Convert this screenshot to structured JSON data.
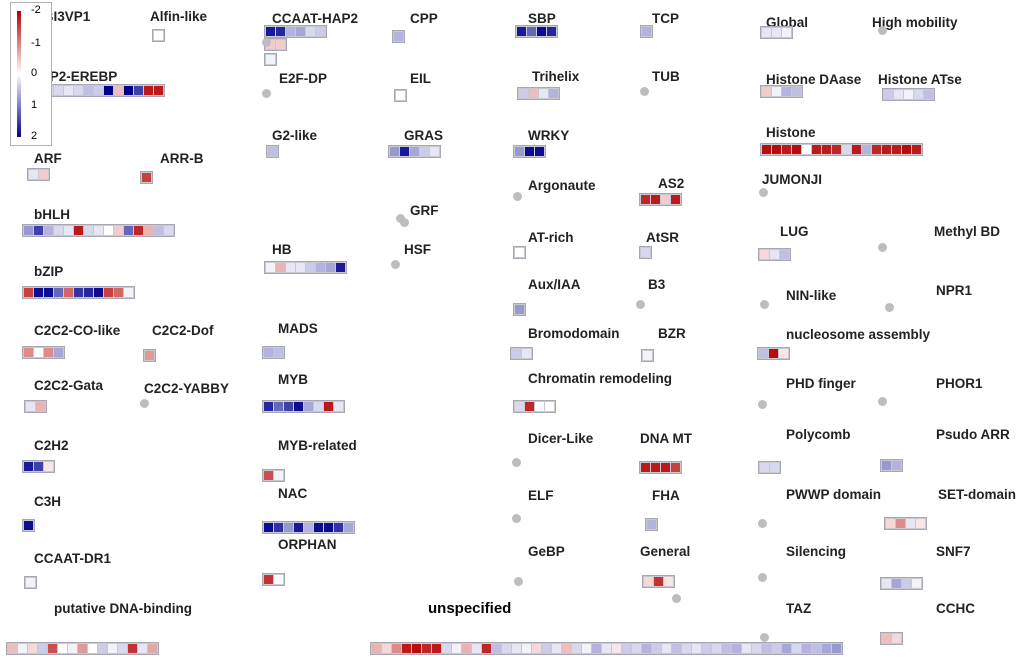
{
  "legend": {
    "ticks": [
      "-2",
      "-1",
      "0",
      "1",
      "2"
    ],
    "colors": {
      "low": "#b40000",
      "mid": "#ffffff",
      "high": "#00008c"
    },
    "scale": [
      -2,
      2
    ]
  },
  "families": [
    {
      "name": "ABI3VP1",
      "cells": [
        0.6
      ]
    },
    {
      "name": "Alfin-like",
      "cells": [
        0
      ]
    },
    {
      "name": "AP2-EREBP",
      "cells": [
        0.3,
        0.2,
        0.3,
        0.3,
        0.2,
        0.3,
        0.5,
        0.4,
        2,
        -0.5,
        2,
        1.5,
        -1.8,
        -1.8
      ]
    },
    {
      "name": "ARF",
      "cells": [
        0.2,
        -0.4
      ]
    },
    {
      "name": "ARR-B",
      "cells": [
        -1.5
      ]
    },
    {
      "name": "bHLH",
      "cells": [
        0.8,
        1.5,
        0.6,
        0.3,
        0.2,
        -1.8,
        0.3,
        0.2,
        0,
        -0.4,
        1.2,
        -1.7,
        -0.6,
        0.5,
        0.3
      ]
    },
    {
      "name": "bZIP",
      "cells": [
        -1.5,
        1.9,
        1.9,
        1.2,
        -1.2,
        1.6,
        1.7,
        1.9,
        -1.5,
        -1.2,
        0.1
      ]
    },
    {
      "name": "C2C2-CO-like",
      "cells": [
        -0.9,
        0,
        -0.9,
        0.7
      ]
    },
    {
      "name": "C2C2-Dof",
      "cells": [
        -0.8
      ]
    },
    {
      "name": "C2C2-Gata",
      "cells": [
        0.2,
        -0.6
      ]
    },
    {
      "name": "C2C2-YABBY",
      "cells": []
    },
    {
      "name": "C2H2",
      "cells": [
        1.8,
        1.5,
        -0.2
      ]
    },
    {
      "name": "C3H",
      "cells": [
        1.9
      ]
    },
    {
      "name": "CCAAT-DR1",
      "cells": [
        0.1
      ]
    },
    {
      "name": "putative DNA-binding",
      "cells": []
    },
    {
      "name": "CCAAT-HAP2",
      "cells": [
        1.8,
        1.7,
        0.6,
        0.7,
        0.3,
        0.4
      ]
    },
    {
      "name": "CCAAT-HAP3",
      "cells": [
        -0.4,
        -0.4
      ]
    },
    {
      "name": "CCAAT-HAP5",
      "cells": [
        0.1
      ]
    },
    {
      "name": "E2F-DP",
      "cells": []
    },
    {
      "name": "G2-like",
      "cells": [
        0.5
      ]
    },
    {
      "name": "HB",
      "cells": [
        0.1,
        -0.6,
        0.2,
        0.2,
        0.4,
        0.6,
        0.7,
        1.8
      ]
    },
    {
      "name": "MADS",
      "cells": [
        0.6,
        0.5
      ]
    },
    {
      "name": "MYB",
      "cells": [
        1.7,
        1.2,
        1.5,
        1.9,
        0.7,
        0.3,
        -1.8,
        0.2
      ]
    },
    {
      "name": "MYB-related",
      "cells": [
        -1.4,
        0.1
      ]
    },
    {
      "name": "NAC",
      "cells": [
        1.9,
        1.6,
        0.8,
        1.8,
        0.6,
        1.9,
        1.9,
        1.6,
        0.7
      ]
    },
    {
      "name": "ORPHAN",
      "cells": [
        -1.6,
        0
      ]
    },
    {
      "name": "CPP",
      "cells": [
        0.6
      ]
    },
    {
      "name": "EIL",
      "cells": [
        0
      ]
    },
    {
      "name": "GRAS",
      "cells": [
        0.8,
        1.8,
        0.7,
        0.4,
        0.2
      ]
    },
    {
      "name": "GRF",
      "cells": []
    },
    {
      "name": "HSF",
      "cells": []
    },
    {
      "name": "SBP",
      "cells": [
        1.8,
        1.2,
        1.9,
        1.7
      ]
    },
    {
      "name": "Trihelix",
      "cells": [
        0.4,
        -0.5,
        0.2,
        0.6
      ]
    },
    {
      "name": "WRKY",
      "cells": [
        0.8,
        1.9,
        1.9
      ]
    },
    {
      "name": "Argonaute",
      "cells": []
    },
    {
      "name": "AT-rich",
      "cells": [
        0
      ]
    },
    {
      "name": "Aux/IAA",
      "cells": [
        0.8
      ]
    },
    {
      "name": "Bromodomain",
      "cells": [
        0.4,
        0.2
      ]
    },
    {
      "name": "Chromatin remodeling",
      "cells": [
        0.3,
        -1.7,
        0,
        0
      ]
    },
    {
      "name": "Dicer-Like",
      "cells": []
    },
    {
      "name": "ELF",
      "cells": []
    },
    {
      "name": "GeBP",
      "cells": []
    },
    {
      "name": "TCP",
      "cells": [
        0.6
      ]
    },
    {
      "name": "TUB",
      "cells": []
    },
    {
      "name": "AS2",
      "cells": [
        -1.7,
        -1.8,
        -0.4,
        -1.8
      ]
    },
    {
      "name": "AtSR",
      "cells": [
        0.3
      ]
    },
    {
      "name": "B3",
      "cells": []
    },
    {
      "name": "BZR",
      "cells": [
        0.1
      ]
    },
    {
      "name": "DNA MT",
      "cells": [
        -1.8,
        -1.8,
        -1.8,
        -1.5
      ]
    },
    {
      "name": "FHA",
      "cells": [
        0.6
      ]
    },
    {
      "name": "General",
      "cells": [
        -0.3,
        -1.6,
        -0.2
      ]
    },
    {
      "name": "Global",
      "cells": [
        0.2,
        0.2,
        0.1
      ]
    },
    {
      "name": "High mobility",
      "cells": []
    },
    {
      "name": "Histone DAase",
      "cells": [
        -0.4,
        0.1,
        0.6,
        0.5
      ]
    },
    {
      "name": "Histone ATse",
      "cells": [
        0.4,
        0.2,
        0.1,
        0.3,
        0.5
      ]
    },
    {
      "name": "Histone",
      "cells": [
        -1.9,
        -1.9,
        -1.8,
        -1.9,
        0,
        -1.8,
        -1.8,
        -1.7,
        0.3,
        -1.8,
        0.6,
        -1.7,
        -1.8,
        -1.8,
        -1.9,
        -1.8
      ]
    },
    {
      "name": "JUMONJI",
      "cells": []
    },
    {
      "name": "LUG",
      "cells": [
        -0.3,
        0.2,
        0.5
      ]
    },
    {
      "name": "Methyl BD",
      "cells": []
    },
    {
      "name": "NIN-like",
      "cells": []
    },
    {
      "name": "NPR1",
      "cells": []
    },
    {
      "name": "nucleosome assembly",
      "cells": [
        0.5,
        -1.9,
        -0.2
      ]
    },
    {
      "name": "PHD finger",
      "cells": []
    },
    {
      "name": "PHOR1",
      "cells": []
    },
    {
      "name": "Polycomb",
      "cells": [
        0.3,
        0.3
      ]
    },
    {
      "name": "Psudo ARR",
      "cells": [
        0.8,
        0.6
      ]
    },
    {
      "name": "PWWP domain",
      "cells": []
    },
    {
      "name": "SET-domain",
      "cells": [
        -0.3,
        -0.9,
        0.2,
        -0.2
      ]
    },
    {
      "name": "Silencing",
      "cells": []
    },
    {
      "name": "SNF7",
      "cells": [
        0.2,
        0.7,
        0.4,
        0.1
      ]
    },
    {
      "name": "TAZ",
      "cells": []
    },
    {
      "name": "CCHC",
      "cells": [
        -0.5,
        -0.3
      ]
    },
    {
      "name": "putative DNA-binding row",
      "cells": [
        -0.5,
        0.1,
        -0.3,
        0.4,
        -1.4,
        0,
        0.1,
        -0.8,
        0,
        0.4,
        0.1,
        0.3,
        -1.6,
        0.2,
        -0.7
      ]
    },
    {
      "name": "unspecified",
      "cells": [
        -0.6,
        -0.3,
        -0.9,
        -1.8,
        -1.9,
        -1.7,
        -1.8,
        0.3,
        0.1,
        -0.6,
        0.2,
        -1.7,
        0.5,
        0.3,
        0.2,
        0.1,
        -0.3,
        0.4,
        0.2,
        -0.5,
        0.3,
        0.1,
        0.6,
        0.2,
        -0.2,
        0.4,
        0.3,
        0.6,
        0.4,
        0.2,
        0.5,
        0.3,
        0.2,
        0.4,
        0.3,
        0.5,
        0.6,
        0.2,
        0.3,
        0.5,
        0.4,
        0.7,
        0.3,
        0.6,
        0.5,
        0.7,
        0.8
      ]
    }
  ]
}
